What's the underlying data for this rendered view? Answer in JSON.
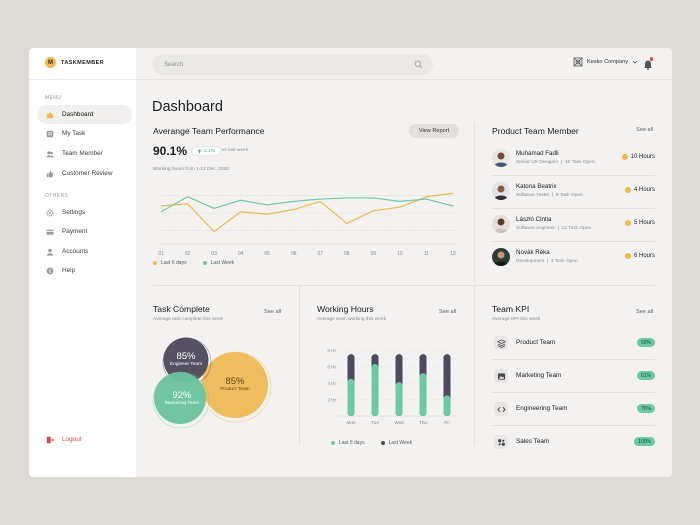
{
  "colors": {
    "accent": "#efb94b",
    "green": "#6cc9a5",
    "dark": "#4d4a5c",
    "danger": "#d84a4a"
  },
  "brand": {
    "mark": "M",
    "name": "TASKMEMBER"
  },
  "sidebar": {
    "menu_heading": "MENU",
    "menu": [
      {
        "label": "Dashboard",
        "icon": "home-icon",
        "active": true
      },
      {
        "label": "My Task",
        "icon": "task-icon"
      },
      {
        "label": "Team Member",
        "icon": "users-icon"
      },
      {
        "label": "Customer Review",
        "icon": "thumbs-up-icon"
      }
    ],
    "others_heading": "OTHERS",
    "others": [
      {
        "label": "Settings",
        "icon": "gear-icon"
      },
      {
        "label": "Payment",
        "icon": "card-icon"
      },
      {
        "label": "Accounts",
        "icon": "user-icon"
      },
      {
        "label": "Help",
        "icon": "info-icon"
      }
    ],
    "logout": "Logout"
  },
  "topbar": {
    "search_placeholder": "Search",
    "company": "Kesko Company"
  },
  "main": {
    "title": "Dashboard"
  },
  "performance": {
    "title": "Averange Team Performance",
    "button": "View Report",
    "value": "90.1%",
    "badge": "2.1%",
    "vs": "vs last week",
    "subtitle": "Working hours from 1-12 Dec, 2020",
    "legend": [
      "Last 6 days",
      "Last Week"
    ]
  },
  "team": {
    "title": "Product Team Member",
    "see_all": "See all",
    "members": [
      {
        "name": "Muhamad Fadli",
        "role": "Senior UX Designer",
        "tasks": "10 Task Open",
        "hours": "10 Hours"
      },
      {
        "name": "Katona Beatrix",
        "role": "Software Tester",
        "tasks": "8 Task Open",
        "hours": "4 Hours"
      },
      {
        "name": "László Cintia",
        "role": "Software engineer",
        "tasks": "12 Task Open",
        "hours": "5 Hours"
      },
      {
        "name": "Novák Réka",
        "role": "Development",
        "tasks": "3 Task Open",
        "hours": "6 Hours"
      }
    ]
  },
  "task": {
    "title": "Task Complete",
    "sub": "Average task complete this week",
    "see_all": "See all",
    "bubbles": [
      {
        "pct": "85%",
        "label": "Engineer Team"
      },
      {
        "pct": "92%",
        "label": "Marketing Team"
      },
      {
        "pct": "85%",
        "label": "Product Team"
      }
    ]
  },
  "hours": {
    "title": "Working Hours",
    "sub": "Average team working this week",
    "see_all": "See all",
    "legend": [
      "Last 6 days",
      "Last Week"
    ]
  },
  "kpi": {
    "title": "Team KPI",
    "sub": "Average KPI this week",
    "see_all": "See all",
    "items": [
      {
        "name": "Product Team",
        "value": "50%",
        "icon": "layers-icon"
      },
      {
        "name": "Marketing Team",
        "value": "61%",
        "icon": "image-icon"
      },
      {
        "name": "Engineering Team",
        "value": "76%",
        "icon": "code-icon"
      },
      {
        "name": "Sales Team",
        "value": "100%",
        "icon": "people-icon"
      }
    ]
  },
  "chart_data": [
    {
      "type": "line",
      "x": [
        "01",
        "02",
        "03",
        "04",
        "05",
        "06",
        "07",
        "08",
        "09",
        "10",
        "11",
        "12"
      ],
      "series": [
        {
          "name": "Last 6 days",
          "color": "#efb94b",
          "values": [
            62,
            66,
            18,
            52,
            48,
            56,
            70,
            32,
            54,
            60,
            78,
            84
          ]
        },
        {
          "name": "Last Week",
          "color": "#6cc9a5",
          "values": [
            52,
            78,
            58,
            72,
            64,
            70,
            74,
            76,
            76,
            70,
            74,
            62
          ]
        }
      ],
      "ylim": [
        0,
        100
      ],
      "grid": true
    },
    {
      "type": "bar",
      "categories": [
        "Mon",
        "Tue",
        "Wed",
        "Thu",
        "Fri"
      ],
      "y_ticks": [
        "8 Hr",
        "6 Hr",
        "4 Hr",
        "2 Hr"
      ],
      "ylim": [
        0,
        8
      ],
      "series": [
        {
          "name": "Last Week",
          "color": "#4d4a5c",
          "values": [
            7.5,
            7.5,
            7.5,
            7.5,
            7.5
          ]
        },
        {
          "name": "Last 6 days",
          "color": "#6cc9a5",
          "values": [
            4.5,
            6.3,
            4.1,
            5.2,
            2.5
          ]
        }
      ]
    }
  ]
}
